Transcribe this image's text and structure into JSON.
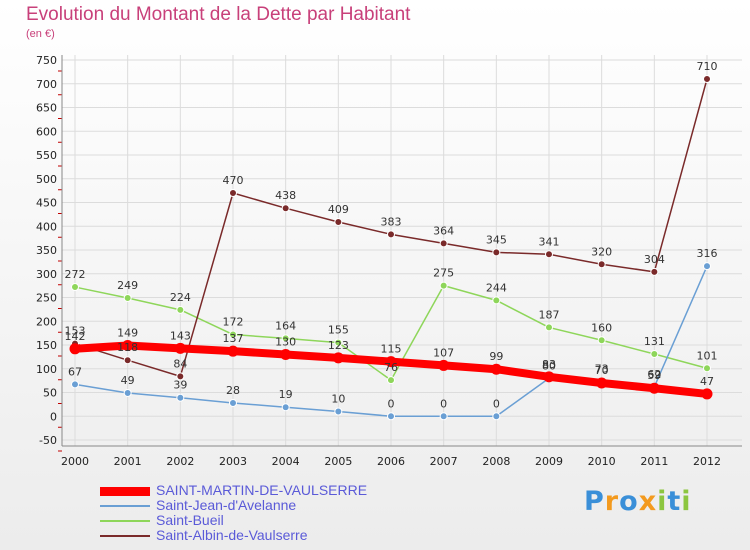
{
  "title": "Evolution du Montant de la Dette par Habitant",
  "unit_label": "(en €)",
  "logo_text": "Proxiti",
  "chart_data": {
    "type": "line",
    "title": "Evolution du Montant de la Dette par Habitant",
    "ylabel": "(en €)",
    "xlabel": "",
    "x": [
      "2000",
      "2001",
      "2002",
      "2003",
      "2004",
      "2005",
      "2006",
      "2007",
      "2008",
      "2009",
      "2010",
      "2011",
      "2012"
    ],
    "ylim": [
      -50,
      750
    ],
    "yticks": [
      -50,
      0,
      50,
      100,
      150,
      200,
      250,
      300,
      350,
      400,
      450,
      500,
      550,
      600,
      650,
      700,
      750
    ],
    "grid": true,
    "legend_position": "bottom-left",
    "series": [
      {
        "name": "SAINT-MARTIN-DE-VAULSERRE",
        "color": "#ff0000",
        "values": [
          142,
          149,
          143,
          137,
          130,
          123,
          115,
          107,
          99,
          83,
          70,
          59,
          47
        ]
      },
      {
        "name": "Saint-Jean-d'Avelanne",
        "color": "#6a9fd4",
        "values": [
          67,
          49,
          39,
          28,
          19,
          10,
          0,
          0,
          0,
          80,
          73,
          62,
          316
        ]
      },
      {
        "name": "Saint-Bueil",
        "color": "#8ed65a",
        "values": [
          272,
          249,
          224,
          172,
          164,
          155,
          76,
          275,
          244,
          187,
          160,
          131,
          101
        ]
      },
      {
        "name": "Saint-Albin-de-Vaulserre",
        "color": "#7a2a2a",
        "values": [
          153,
          118,
          84,
          470,
          438,
          409,
          383,
          364,
          345,
          341,
          320,
          304,
          710
        ]
      }
    ]
  }
}
